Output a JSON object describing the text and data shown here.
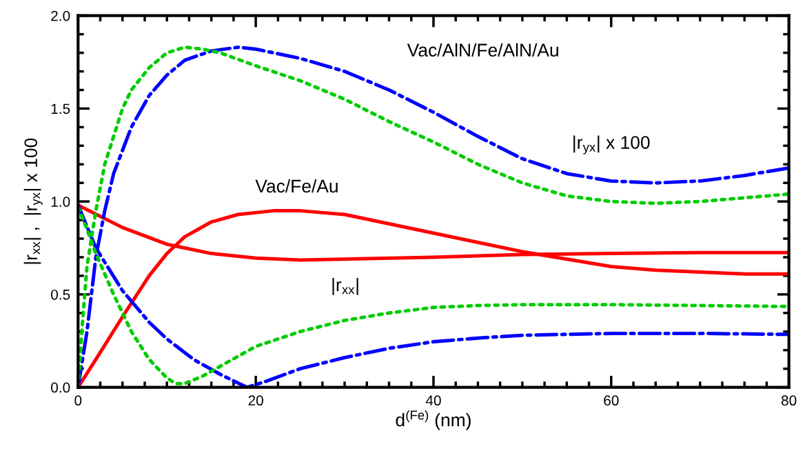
{
  "chart_data": {
    "type": "line",
    "xlabel": "d$^{(Fe)}$ (nm)",
    "ylabel": "|r$_{xx}$| ,  |r$_{yx}$| x 100",
    "xlim": [
      0,
      80
    ],
    "ylim": [
      0,
      2.0
    ],
    "xticks": [
      0,
      20,
      40,
      60,
      80
    ],
    "yticks": [
      {
        "value": 0,
        "label": "0.0"
      },
      0.5,
      {
        "value": 1,
        "label": "1.0"
      },
      1.5,
      {
        "value": 2,
        "label": "2.0"
      }
    ],
    "grid": false,
    "legend": false,
    "marker": "none",
    "series": [
      {
        "color": "#ff0000",
        "line_style": "solid",
        "x": [
          0,
          5,
          10,
          15,
          20,
          25,
          30,
          40,
          50,
          60,
          70,
          80
        ],
        "values": [
          0.98,
          0.86,
          0.77,
          0.72,
          0.695,
          0.685,
          0.69,
          0.7,
          0.715,
          0.72,
          0.725,
          0.725
        ]
      },
      {
        "color": "#ff0000",
        "line_style": "solid",
        "x": [
          0,
          2,
          5,
          8,
          10,
          12,
          15,
          18,
          22,
          25,
          30,
          35,
          40,
          45,
          50,
          55,
          60,
          65,
          70,
          75,
          80
        ],
        "values": [
          0,
          0.15,
          0.38,
          0.6,
          0.72,
          0.81,
          0.89,
          0.93,
          0.95,
          0.95,
          0.93,
          0.88,
          0.83,
          0.78,
          0.73,
          0.69,
          0.65,
          0.63,
          0.62,
          0.61,
          0.61
        ]
      },
      {
        "color": "#0000ff",
        "line_style": "dashdot",
        "x": [
          0,
          1,
          2,
          3,
          4,
          6,
          8,
          10,
          12,
          15,
          18,
          20,
          25,
          30,
          35,
          40,
          45,
          50,
          55,
          60,
          65,
          70,
          75,
          80
        ],
        "values": [
          0,
          0.3,
          0.7,
          0.95,
          1.15,
          1.4,
          1.57,
          1.68,
          1.76,
          1.81,
          1.83,
          1.82,
          1.77,
          1.7,
          1.6,
          1.48,
          1.35,
          1.23,
          1.15,
          1.11,
          1.1,
          1.11,
          1.14,
          1.18
        ]
      },
      {
        "color": "#0000ff",
        "line_style": "dashdot",
        "x": [
          0,
          2,
          5,
          8,
          10,
          13,
          16,
          19,
          21,
          25,
          30,
          35,
          40,
          45,
          50,
          55,
          60,
          70,
          80
        ],
        "values": [
          0.98,
          0.75,
          0.52,
          0.35,
          0.26,
          0.15,
          0.07,
          0.0,
          0.03,
          0.1,
          0.16,
          0.21,
          0.245,
          0.265,
          0.28,
          0.285,
          0.29,
          0.29,
          0.285
        ]
      },
      {
        "color": "#00cc00",
        "line_style": "dotted",
        "x": [
          0,
          0.5,
          1,
          2,
          3,
          4,
          5,
          6,
          8,
          10,
          12,
          14,
          16,
          20,
          25,
          30,
          35,
          40,
          45,
          50,
          55,
          60,
          65,
          70,
          75,
          80
        ],
        "values": [
          0,
          0.35,
          0.65,
          0.95,
          1.2,
          1.35,
          1.5,
          1.6,
          1.72,
          1.8,
          1.83,
          1.82,
          1.8,
          1.73,
          1.65,
          1.55,
          1.43,
          1.32,
          1.2,
          1.1,
          1.03,
          1.0,
          0.99,
          1.0,
          1.02,
          1.04
        ]
      },
      {
        "color": "#00cc00",
        "line_style": "dotted",
        "x": [
          0,
          1,
          2,
          4,
          6,
          8,
          10,
          11,
          12,
          14,
          17,
          20,
          25,
          30,
          35,
          40,
          45,
          50,
          60,
          70,
          80
        ],
        "values": [
          0.97,
          0.85,
          0.72,
          0.5,
          0.3,
          0.15,
          0.05,
          0.02,
          0.02,
          0.06,
          0.14,
          0.22,
          0.3,
          0.36,
          0.4,
          0.43,
          0.44,
          0.445,
          0.445,
          0.44,
          0.435
        ]
      }
    ],
    "annotations": [
      "Vac/AlN/Fe/AlN/Au",
      "|r$_{yx}$| x 100",
      "Vac/Fe/Au",
      "|r$_{xx}$|"
    ]
  }
}
